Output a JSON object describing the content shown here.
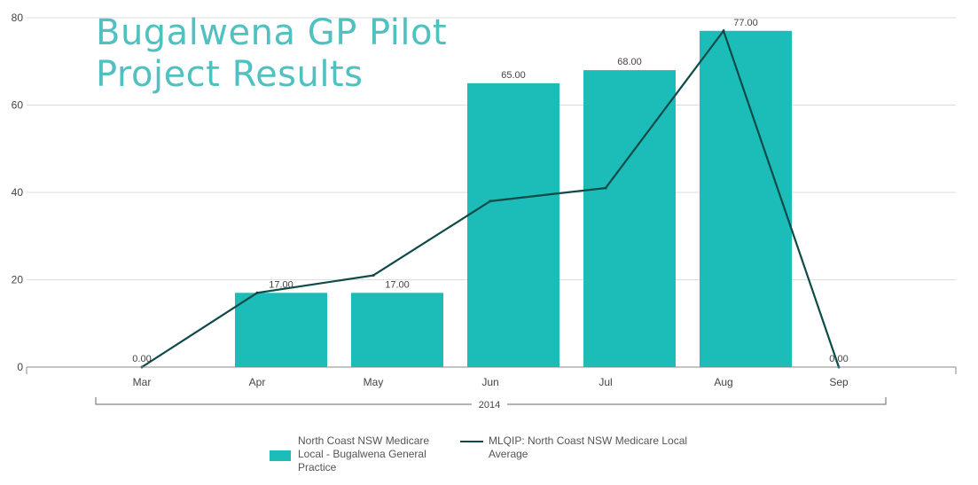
{
  "title": {
    "line1": "Bugalwena GP Pilot",
    "line2": "Project Results"
  },
  "colors": {
    "bar": "#1cbcb8",
    "line": "#0e4a48",
    "title": "#4fc1c0",
    "grid": "#dddddd",
    "axis_text": "#444444"
  },
  "chart_data": {
    "type": "bar",
    "title": "Bugalwena GP Pilot Project Results",
    "categories": [
      "Mar",
      "Apr",
      "May",
      "Jun",
      "Jul",
      "Aug",
      "Sep"
    ],
    "group_label": "2014",
    "ylim": [
      0,
      80
    ],
    "yticks": [
      "0",
      "20",
      "40",
      "60",
      "80"
    ],
    "grid": true,
    "legend_position": "bottom",
    "series": [
      {
        "name": "North Coast NSW Medicare Local - Bugalwena General Practice",
        "type": "bar",
        "values": [
          0,
          17,
          17,
          65,
          68,
          77,
          0
        ],
        "labels": [
          "0.00",
          "17.00",
          "17.00",
          "65.00",
          "68.00",
          "77.00",
          "0.00"
        ]
      },
      {
        "name": "MLQIP: North Coast NSW Medicare Local Average",
        "type": "line",
        "values": [
          0,
          17,
          21,
          38,
          41,
          77,
          0
        ]
      }
    ]
  },
  "legend": {
    "bar_text": "North Coast NSW Medicare Local - Bugalwena General Practice",
    "line_text": "MLQIP: North Coast NSW Medicare Local Average"
  }
}
